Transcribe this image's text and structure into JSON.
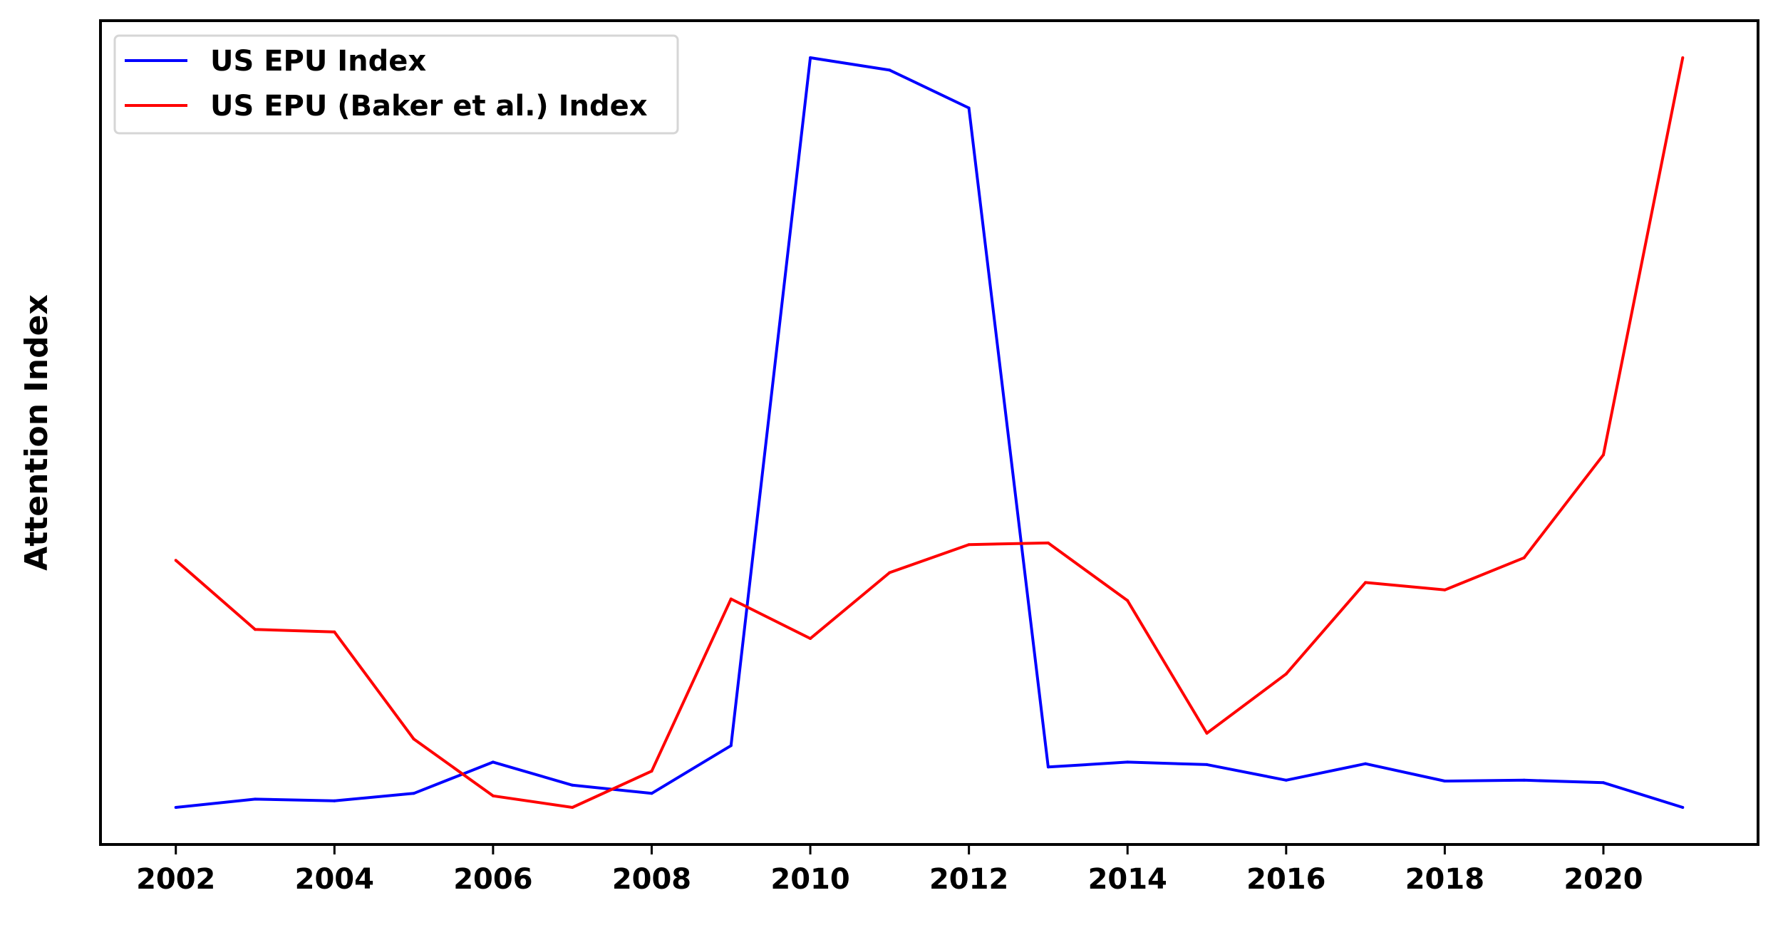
{
  "chart_data": {
    "type": "line",
    "title": "",
    "xlabel": "",
    "ylabel": "Attention Index",
    "x": [
      2002,
      2003,
      2004,
      2005,
      2006,
      2007,
      2008,
      2009,
      2010,
      2011,
      2012,
      2013,
      2014,
      2015,
      2016,
      2017,
      2018,
      2019,
      2020,
      2021
    ],
    "xticks": [
      "2002",
      "2004",
      "2006",
      "2008",
      "2010",
      "2012",
      "2014",
      "2016",
      "2018",
      "2020"
    ],
    "xlim": [
      2001.05,
      2021.95
    ],
    "ylim": [
      0,
      1
    ],
    "y_tick_labels_shown": false,
    "grid": false,
    "legend_position": "top-left",
    "series": [
      {
        "name": "US EPU Index",
        "color": "#0000ff",
        "values": [
          0.045,
          0.055,
          0.053,
          0.062,
          0.1,
          0.072,
          0.062,
          0.12,
          0.955,
          0.94,
          0.894,
          0.094,
          0.1,
          0.097,
          0.078,
          0.098,
          0.077,
          0.078,
          0.075,
          0.045
        ]
      },
      {
        "name": "US EPU (Baker et al.) Index",
        "color": "#ff0000",
        "values": [
          0.345,
          0.261,
          0.258,
          0.128,
          0.059,
          0.045,
          0.089,
          0.298,
          0.25,
          0.33,
          0.364,
          0.366,
          0.296,
          0.135,
          0.207,
          0.318,
          0.309,
          0.348,
          0.473,
          0.955
        ]
      }
    ]
  }
}
